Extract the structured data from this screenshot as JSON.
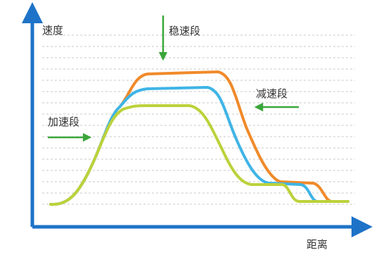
{
  "labels": {
    "y_axis": "速度",
    "x_axis": "距离",
    "steady": "稳速段",
    "decel": "减速段",
    "accel": "加速段"
  },
  "colors": {
    "axis": "#1e73c8",
    "grid": "#c8c8c8",
    "curve_orange": "#f08a2a",
    "curve_blue": "#3fb4e6",
    "curve_green": "#bcd23a",
    "arrow_green": "#3aa63a"
  }
}
